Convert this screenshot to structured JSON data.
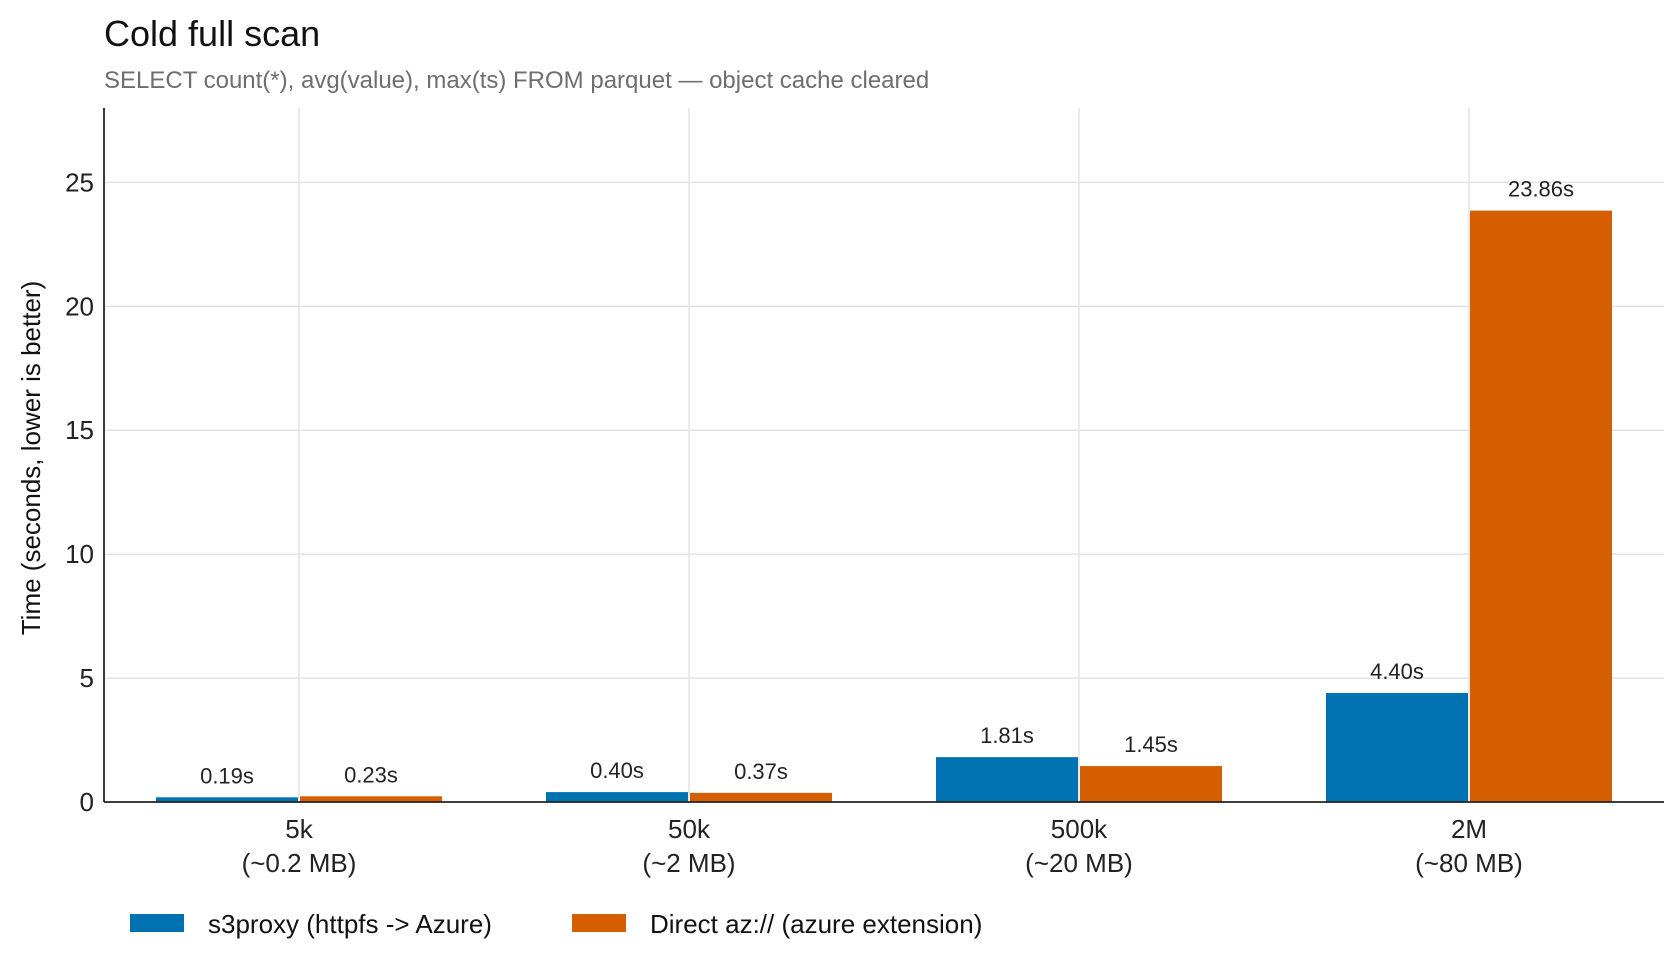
{
  "chart_data": {
    "type": "bar",
    "title": "Cold full scan",
    "subtitle": "SELECT count(*), avg(value), max(ts) FROM parquet — object cache cleared",
    "xlabel": "",
    "ylabel": "Time (seconds, lower is better)",
    "ylim": [
      0,
      28
    ],
    "yticks": [
      0,
      5,
      10,
      15,
      20,
      25
    ],
    "grid": true,
    "legend_position": "bottom-left",
    "categories": [
      [
        "5k",
        "(~0.2 MB)"
      ],
      [
        "50k",
        "(~2 MB)"
      ],
      [
        "500k",
        "(~20 MB)"
      ],
      [
        "2M",
        "(~80 MB)"
      ]
    ],
    "series": [
      {
        "name": "s3proxy (httpfs -> Azure)",
        "color": "#0072b2",
        "values": [
          0.19,
          0.4,
          1.81,
          4.4
        ],
        "labels": [
          "0.19s",
          "0.40s",
          "1.81s",
          "4.40s"
        ]
      },
      {
        "name": "Direct az:// (azure extension)",
        "color": "#d55e00",
        "values": [
          0.23,
          0.37,
          1.45,
          23.86
        ],
        "labels": [
          "0.23s",
          "0.37s",
          "1.45s",
          "23.86s"
        ]
      }
    ]
  }
}
